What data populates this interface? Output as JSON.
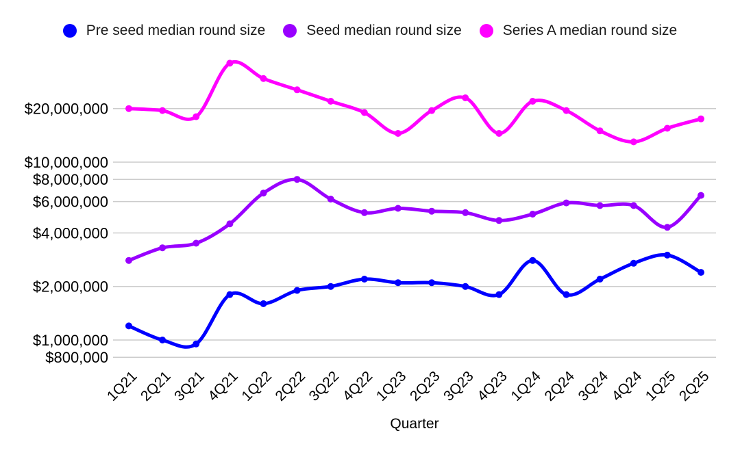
{
  "chart_data": {
    "type": "line",
    "smooth": true,
    "grid": true,
    "legend_position": "top",
    "title": "",
    "xlabel": "Quarter",
    "ylabel": "",
    "x_categories": [
      "1Q21",
      "2Q21",
      "3Q21",
      "4Q21",
      "1Q22",
      "2Q22",
      "3Q22",
      "4Q22",
      "1Q23",
      "2Q23",
      "3Q23",
      "4Q23",
      "1Q24",
      "2Q24",
      "3Q24",
      "4Q24",
      "1Q25",
      "2Q25"
    ],
    "y_axis": {
      "scale": "log",
      "range": [
        800000,
        40000000
      ],
      "tick_values": [
        800000,
        1000000,
        2000000,
        4000000,
        6000000,
        8000000,
        10000000,
        20000000
      ],
      "tick_labels": [
        "$800,000",
        "$1,000,000",
        "$2,000,000",
        "$4,000,000",
        "$6,000,000",
        "$8,000,000",
        "$10,000,000",
        "$20,000,000"
      ]
    },
    "series": [
      {
        "name": "Pre seed median round size",
        "color": "#0000ff",
        "values": [
          1200000,
          1000000,
          950000,
          1800000,
          1600000,
          1900000,
          2000000,
          2200000,
          2100000,
          2100000,
          2000000,
          1800000,
          2800000,
          1800000,
          2200000,
          2700000,
          3000000,
          2400000
        ]
      },
      {
        "name": "Seed median round size",
        "color": "#9900ff",
        "values": [
          2800000,
          3300000,
          3500000,
          4500000,
          6700000,
          8000000,
          6200000,
          5200000,
          5500000,
          5300000,
          5200000,
          4700000,
          5100000,
          5900000,
          5700000,
          5700000,
          4300000,
          6500000
        ]
      },
      {
        "name": "Series A median round size",
        "color": "#ff00ff",
        "values": [
          20000000,
          19500000,
          18000000,
          36000000,
          29500000,
          25500000,
          22000000,
          19000000,
          14500000,
          19500000,
          23000000,
          14500000,
          22000000,
          19500000,
          15000000,
          13000000,
          15500000,
          17500000
        ]
      }
    ]
  },
  "colors": {
    "background": "#ffffff",
    "gridline": "#cccccc",
    "axis_text": "#000000",
    "legend_text": "#1a1a1a"
  }
}
